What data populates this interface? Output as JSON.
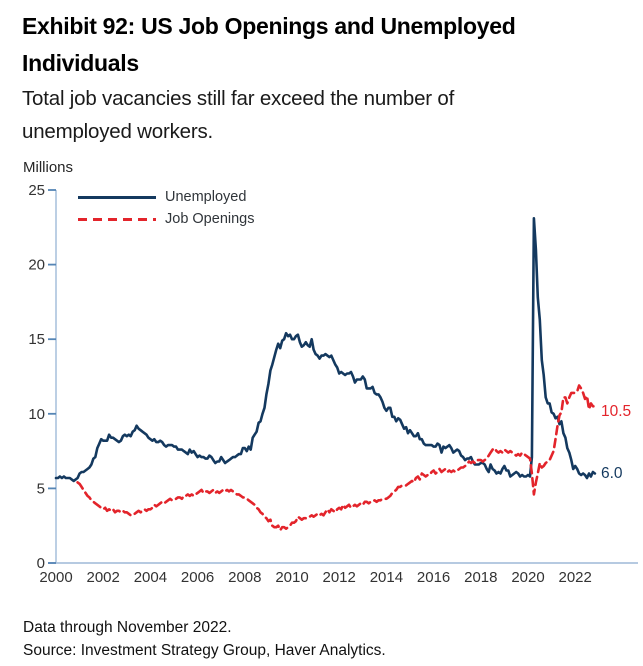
{
  "header": {
    "title_lines": [
      "Exhibit 92: US Job Openings and Unemployed",
      "Individuals"
    ],
    "subtitle_lines": [
      "Total job vacancies still far exceed the number of",
      "unemployed workers."
    ]
  },
  "footer": {
    "notes": [
      "Data through November 2022.",
      "Source: Investment Strategy Group, Haver Analytics."
    ]
  },
  "chart_data": {
    "type": "line",
    "title": "Exhibit 92: US Job Openings and Unemployed Individuals",
    "subtitle": "Total job vacancies still far exceed the number of unemployed workers.",
    "unit_label": "Millions",
    "ylabel": "Millions",
    "xlabel": "",
    "ylim": [
      0,
      25
    ],
    "y_ticks": [
      0,
      5,
      10,
      15,
      20,
      25
    ],
    "x_ticks": [
      2000,
      2002,
      2004,
      2006,
      2008,
      2010,
      2012,
      2014,
      2016,
      2018,
      2020,
      2022
    ],
    "grid": false,
    "legend_position": "top-left-inside",
    "axis_color": "#abc3dd",
    "tick_color": "#5585b5",
    "tick_label_color": "#333333",
    "frequency": "monthly",
    "series": [
      {
        "name": "Unemployed",
        "color": "#14395f",
        "line_style": "solid",
        "start": "2000-01",
        "end": "2022-11",
        "end_label": "6.0",
        "values": [
          5.7,
          5.7,
          5.8,
          5.7,
          5.8,
          5.7,
          5.7,
          5.7,
          5.6,
          5.5,
          5.6,
          5.7,
          6.0,
          6.1,
          6.1,
          6.2,
          6.3,
          6.4,
          6.6,
          7.0,
          7.1,
          7.7,
          8.0,
          8.3,
          8.2,
          8.2,
          8.2,
          8.6,
          8.4,
          8.4,
          8.3,
          8.2,
          8.1,
          8.2,
          8.5,
          8.6,
          8.5,
          8.6,
          8.5,
          8.8,
          8.9,
          9.2,
          9.0,
          8.9,
          8.8,
          8.7,
          8.6,
          8.4,
          8.3,
          8.2,
          8.3,
          8.1,
          8.1,
          8.2,
          8.1,
          7.9,
          7.8,
          7.9,
          7.9,
          7.9,
          7.8,
          7.8,
          7.6,
          7.6,
          7.6,
          7.5,
          7.4,
          7.3,
          7.6,
          7.4,
          7.5,
          7.3,
          7.1,
          7.2,
          7.1,
          7.1,
          7.0,
          7.0,
          7.2,
          7.1,
          6.9,
          6.7,
          6.8,
          6.8,
          7.1,
          6.9,
          6.7,
          6.8,
          6.9,
          7.0,
          7.1,
          7.1,
          7.2,
          7.3,
          7.3,
          7.7,
          7.7,
          7.5,
          7.8,
          7.6,
          8.4,
          8.6,
          8.8,
          9.4,
          9.5,
          10.0,
          10.4,
          11.3,
          12.0,
          12.9,
          13.3,
          13.8,
          14.3,
          14.7,
          14.4,
          14.9,
          15.0,
          15.4,
          15.2,
          15.3,
          15.0,
          15.0,
          15.2,
          15.3,
          14.8,
          14.5,
          14.6,
          14.8,
          14.6,
          14.5,
          15.0,
          14.3,
          14.0,
          13.9,
          13.7,
          13.9,
          13.9,
          14.0,
          13.9,
          13.8,
          13.9,
          13.6,
          13.3,
          13.1,
          12.7,
          12.8,
          12.7,
          12.6,
          12.7,
          12.7,
          12.8,
          12.5,
          12.1,
          12.3,
          12.3,
          12.3,
          12.5,
          12.3,
          11.7,
          11.7,
          11.7,
          11.8,
          11.4,
          11.3,
          11.3,
          11.1,
          10.8,
          10.4,
          10.2,
          10.4,
          10.4,
          9.8,
          9.8,
          9.5,
          9.7,
          9.6,
          9.3,
          9.0,
          9.1,
          8.7,
          8.9,
          8.7,
          8.5,
          8.5,
          8.7,
          8.3,
          8.3,
          8.0,
          7.9,
          7.9,
          7.9,
          7.9,
          7.8,
          7.8,
          8.0,
          7.9,
          7.4,
          7.8,
          7.7,
          7.8,
          7.9,
          7.7,
          7.4,
          7.5,
          7.6,
          7.5,
          7.2,
          7.1,
          6.9,
          7.0,
          7.0,
          7.1,
          6.8,
          6.6,
          6.6,
          6.6,
          6.7,
          6.7,
          6.6,
          6.3,
          6.1,
          6.6,
          6.3,
          6.2,
          6.0,
          6.1,
          6.0,
          6.3,
          6.5,
          6.2,
          6.2,
          5.8,
          5.9,
          6.0,
          6.1,
          6.0,
          5.8,
          5.9,
          5.8,
          5.8,
          5.9,
          5.8,
          7.1,
          23.1,
          21.0,
          17.8,
          16.3,
          13.6,
          12.6,
          11.1,
          10.7,
          10.7,
          10.1,
          10.0,
          9.7,
          9.8,
          9.3,
          9.5,
          8.7,
          8.4,
          7.7,
          7.4,
          6.9,
          6.3,
          6.5,
          6.3,
          6.0,
          5.9,
          6.0,
          5.9,
          5.7,
          6.0,
          5.8,
          6.1,
          6.0
        ]
      },
      {
        "name": "Job Openings",
        "color": "#e3242b",
        "line_style": "dashed",
        "start": "2000-12",
        "end": "2022-11",
        "end_label": "10.5",
        "values": [
          5.4,
          5.3,
          5.1,
          4.9,
          4.7,
          4.5,
          4.4,
          4.2,
          4.1,
          4.0,
          3.9,
          3.8,
          3.7,
          3.6,
          3.7,
          3.5,
          3.6,
          3.5,
          3.6,
          3.4,
          3.5,
          3.5,
          3.4,
          3.5,
          3.4,
          3.4,
          3.3,
          3.2,
          3.3,
          3.3,
          3.4,
          3.5,
          3.4,
          3.5,
          3.6,
          3.5,
          3.6,
          3.6,
          3.7,
          3.9,
          3.8,
          3.9,
          4.0,
          4.1,
          4.0,
          4.1,
          4.2,
          4.3,
          4.2,
          4.2,
          4.3,
          4.4,
          4.4,
          4.3,
          4.5,
          4.5,
          4.6,
          4.5,
          4.6,
          4.5,
          4.6,
          4.7,
          4.8,
          4.9,
          4.7,
          4.8,
          4.8,
          4.7,
          4.8,
          4.9,
          4.7,
          4.8,
          4.7,
          4.8,
          4.9,
          4.8,
          4.9,
          4.8,
          4.9,
          4.8,
          4.7,
          4.6,
          4.6,
          4.5,
          4.4,
          4.4,
          4.3,
          4.2,
          4.1,
          4.0,
          3.9,
          3.7,
          3.6,
          3.4,
          3.3,
          3.1,
          3.0,
          2.8,
          2.9,
          2.5,
          2.4,
          2.4,
          2.5,
          2.2,
          2.4,
          2.4,
          2.3,
          2.4,
          2.5,
          2.7,
          2.7,
          2.8,
          3.1,
          3.0,
          2.9,
          3.0,
          3.0,
          3.0,
          3.1,
          3.2,
          3.1,
          3.2,
          3.3,
          3.2,
          3.3,
          3.2,
          3.4,
          3.6,
          3.4,
          3.6,
          3.5,
          3.4,
          3.6,
          3.7,
          3.6,
          3.9,
          3.7,
          3.8,
          3.9,
          3.7,
          3.8,
          3.9,
          3.8,
          3.9,
          4.0,
          3.9,
          4.1,
          4.1,
          4.0,
          4.1,
          4.1,
          4.2,
          4.1,
          4.2,
          4.2,
          4.3,
          4.3,
          4.3,
          4.4,
          4.5,
          4.7,
          4.8,
          4.9,
          5.1,
          5.1,
          5.2,
          5.2,
          5.2,
          5.3,
          5.4,
          5.5,
          5.4,
          5.7,
          5.8,
          5.6,
          6.0,
          5.9,
          5.8,
          5.9,
          5.9,
          6.1,
          6.2,
          6.0,
          6.1,
          6.3,
          6.1,
          6.2,
          6.3,
          6.1,
          6.2,
          6.1,
          6.2,
          6.1,
          6.2,
          6.3,
          6.4,
          6.4,
          6.5,
          6.6,
          6.8,
          6.7,
          6.8,
          6.7,
          6.9,
          6.9,
          6.9,
          6.8,
          6.9,
          7.0,
          7.2,
          7.4,
          7.6,
          7.7,
          7.5,
          7.4,
          7.5,
          7.4,
          7.6,
          7.5,
          7.4,
          7.5,
          7.4,
          7.3,
          7.2,
          7.3,
          7.2,
          7.4,
          7.3,
          7.2,
          7.1,
          7.0,
          6.0,
          4.6,
          5.4,
          6.0,
          6.7,
          6.4,
          6.5,
          6.7,
          6.8,
          6.9,
          7.2,
          7.5,
          8.3,
          9.2,
          9.9,
          10.1,
          11.1,
          11.1,
          10.7,
          11.1,
          11.4,
          11.4,
          11.4,
          11.5,
          11.9,
          11.7,
          11.4,
          11.0,
          11.2,
          10.3,
          10.7,
          10.5,
          10.5
        ]
      }
    ]
  }
}
